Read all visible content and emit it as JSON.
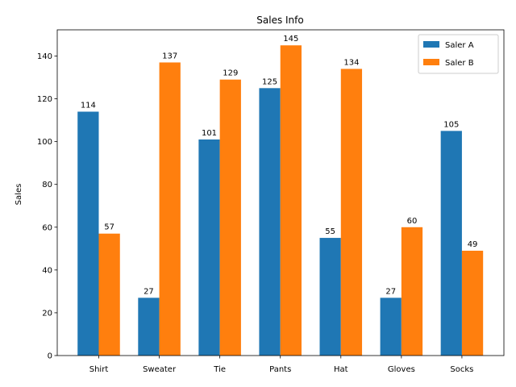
{
  "chart_data": {
    "type": "bar",
    "title": "Sales Info",
    "xlabel": "",
    "ylabel": "Sales",
    "categories": [
      "Shirt",
      "Sweater",
      "Tie",
      "Pants",
      "Hat",
      "Gloves",
      "Socks"
    ],
    "series": [
      {
        "name": "Saler A",
        "color": "#1f77b4",
        "values": [
          114,
          27,
          101,
          125,
          55,
          27,
          105
        ]
      },
      {
        "name": "Saler B",
        "color": "#ff7f0e",
        "values": [
          57,
          137,
          129,
          145,
          134,
          60,
          49
        ]
      }
    ],
    "ylim": [
      0,
      152.25
    ],
    "yticks": [
      0,
      20,
      40,
      60,
      80,
      100,
      120,
      140
    ],
    "grid": false,
    "legend_position": "top-right",
    "data_labels": true
  }
}
